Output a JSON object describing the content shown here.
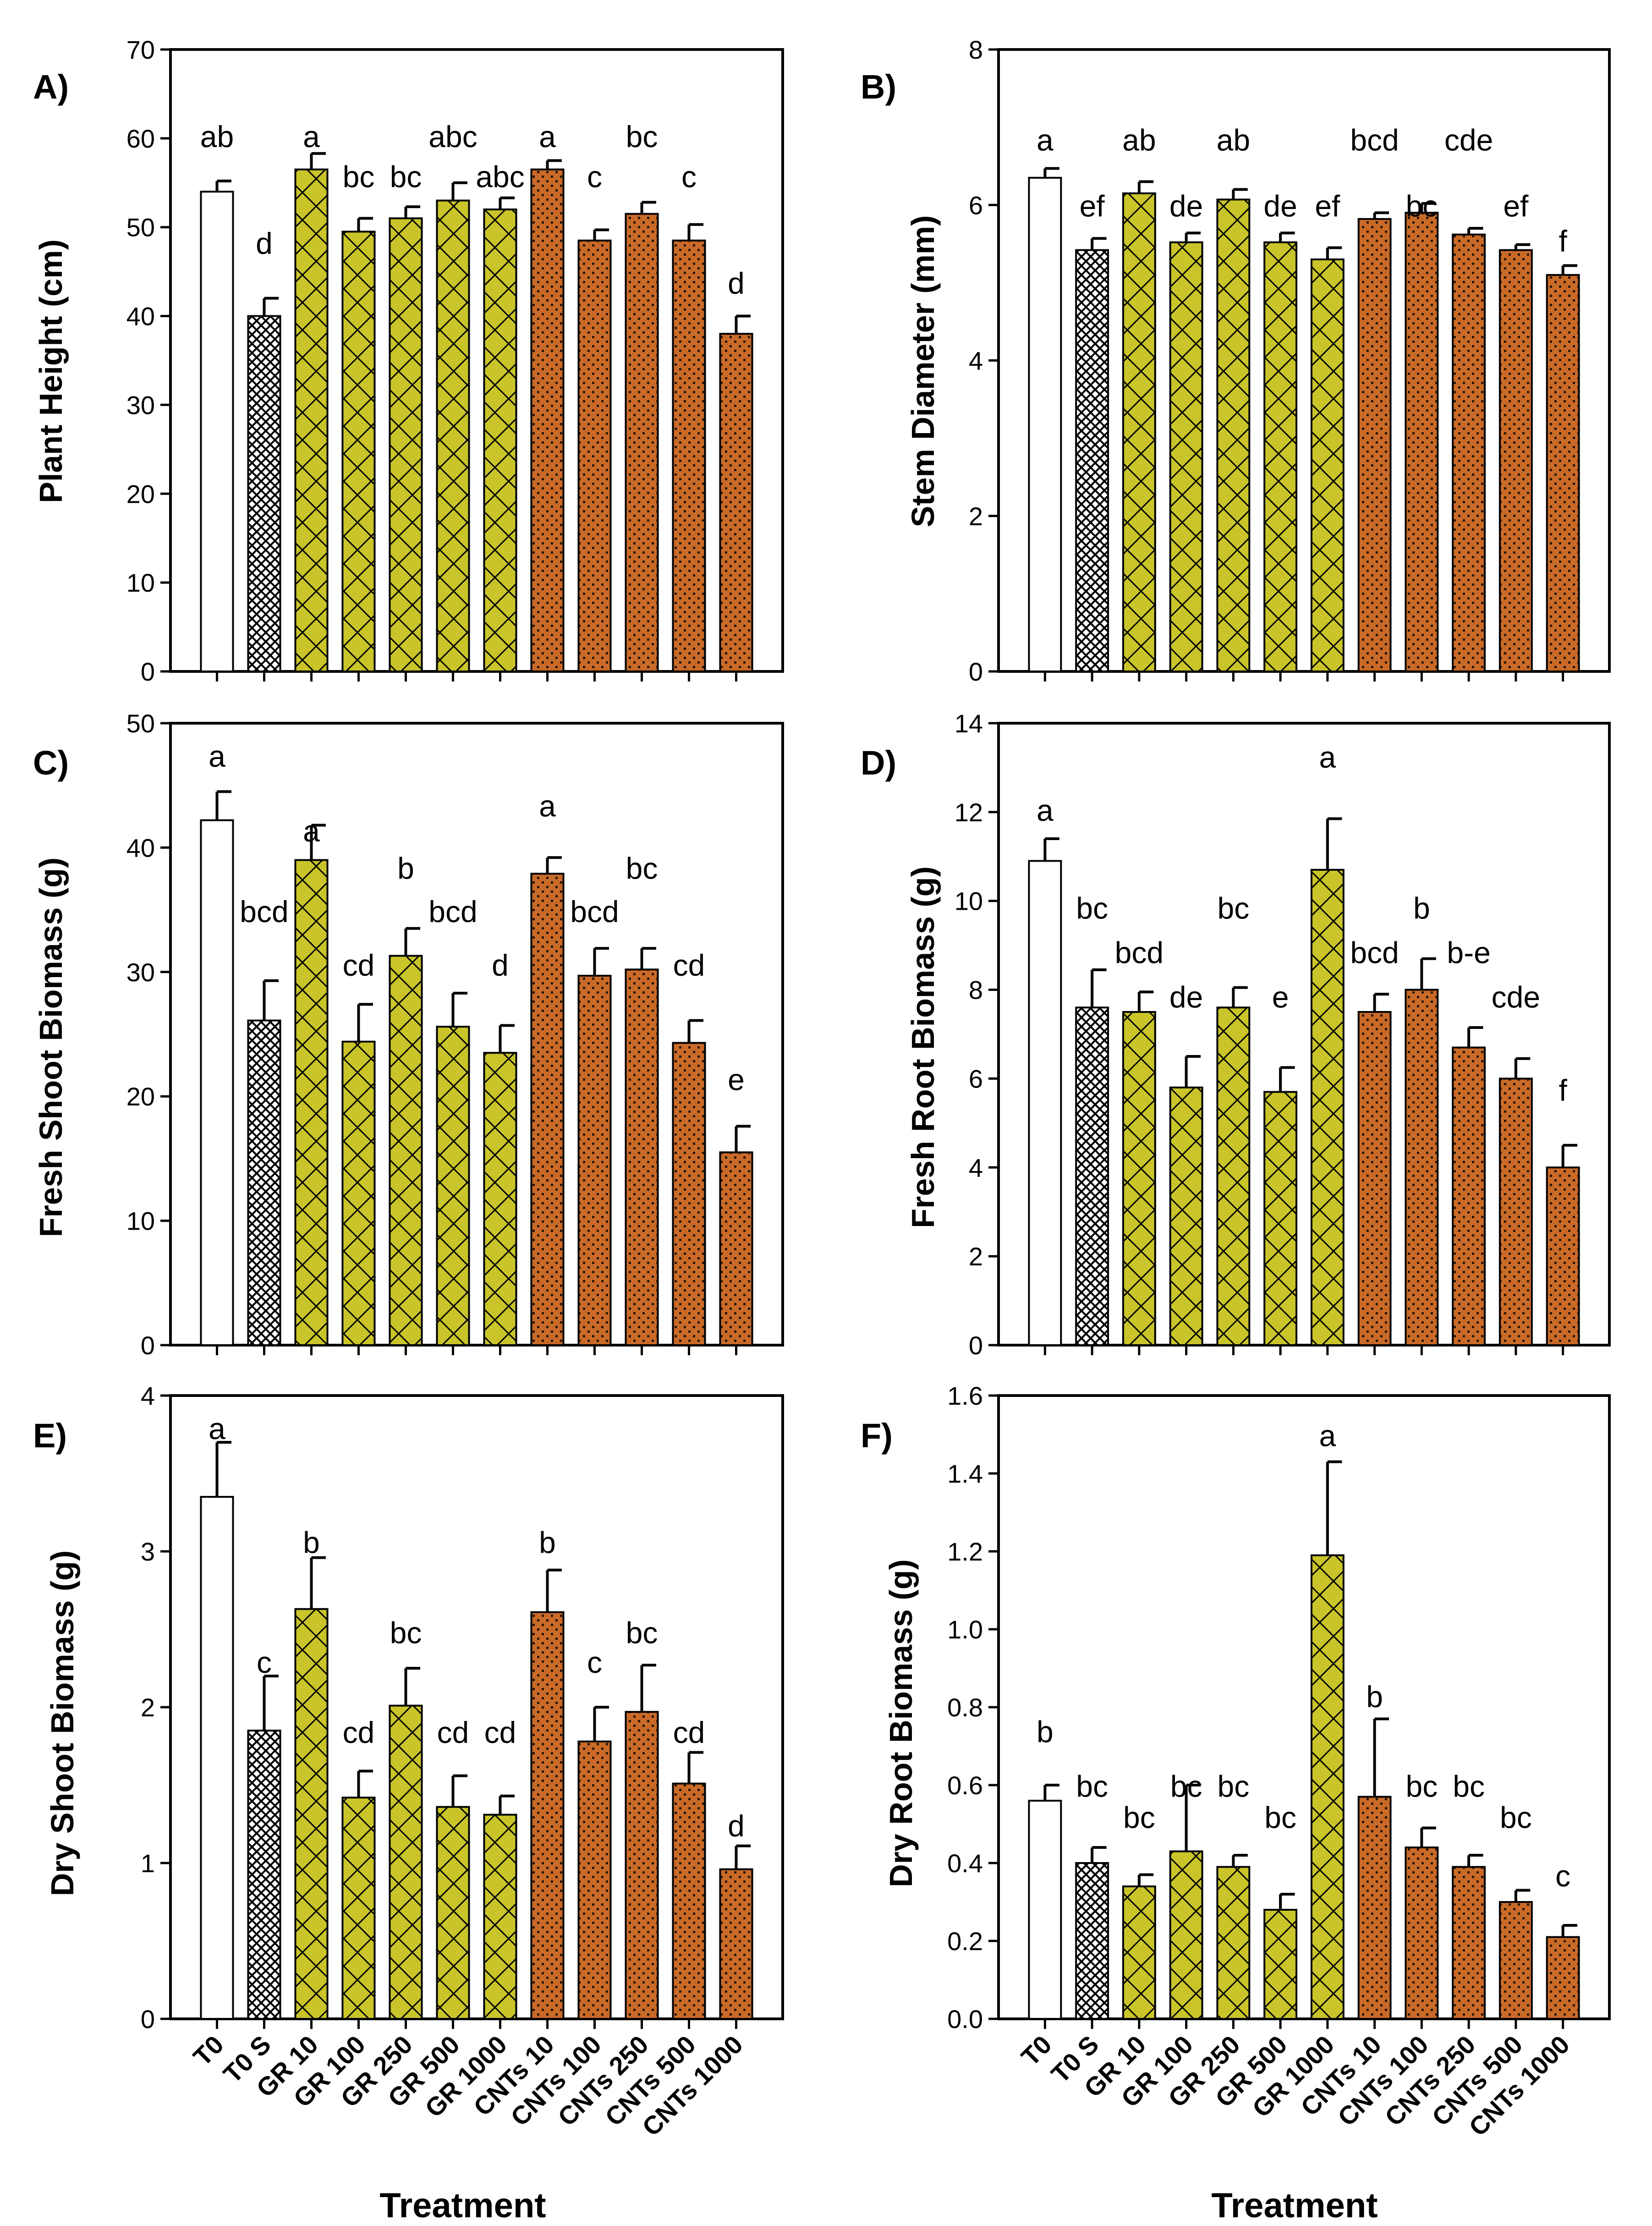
{
  "colors": {
    "control": "#ffffff",
    "salt": "#ffffff",
    "graphene": "#c9c42a",
    "cnts": "#c96a28",
    "cnts_dot": "#2a1608",
    "outline": "#000000"
  },
  "x_axis_title": "Treatment",
  "chart_data": [
    {
      "panel": "A)",
      "type": "bar",
      "ylabel": "Plant Height (cm)",
      "ylim": [
        0,
        70
      ],
      "ticks": [
        0,
        10,
        20,
        30,
        40,
        50,
        60,
        70
      ],
      "tick_labels": [
        "0",
        "10",
        "20",
        "30",
        "40",
        "50",
        "60",
        "70"
      ],
      "categories": [
        "T0",
        "T0 S",
        "GR 10",
        "GR 100",
        "GR 250",
        "GR 500",
        "GR 1000",
        "CNTs 10",
        "CNTs 100",
        "CNTs 250",
        "CNTs 500",
        "CNTs 1000"
      ],
      "values": [
        54,
        40,
        56.5,
        49.5,
        51,
        53,
        52,
        56.5,
        48.5,
        51.5,
        48.5,
        38
      ],
      "errors": [
        1.2,
        2,
        1.8,
        1.5,
        1.3,
        2,
        1.3,
        1,
        1.2,
        1.3,
        1.8,
        2
      ],
      "letters": [
        "ab",
        "d",
        "a",
        "bc",
        "bc",
        "abc",
        "abc",
        "a",
        "c",
        "bc",
        "c",
        "d"
      ],
      "letter_values": [
        59,
        47,
        59,
        54.5,
        54.5,
        59,
        54.5,
        59,
        54.5,
        59,
        54.5,
        42.5
      ],
      "show_xlabels": false
    },
    {
      "panel": "B)",
      "type": "bar",
      "ylabel": "Stem Diameter (mm)",
      "ylim": [
        0,
        8
      ],
      "ticks": [
        0,
        2,
        4,
        6,
        8
      ],
      "tick_labels": [
        "0",
        "2",
        "4",
        "6",
        "8"
      ],
      "categories": [
        "T0",
        "T0 S",
        "GR 10",
        "GR 100",
        "GR 250",
        "GR 500",
        "GR 1000",
        "CNTs 10",
        "CNTs 100",
        "CNTs 250",
        "CNTs 500",
        "CNTs 1000"
      ],
      "values": [
        6.35,
        5.42,
        6.15,
        5.52,
        6.07,
        5.52,
        5.3,
        5.82,
        5.9,
        5.62,
        5.42,
        5.1
      ],
      "errors": [
        0.12,
        0.15,
        0.15,
        0.12,
        0.13,
        0.12,
        0.15,
        0.08,
        0.12,
        0.08,
        0.07,
        0.12
      ],
      "letters": [
        "a",
        "ef",
        "ab",
        "de",
        "ab",
        "de",
        "ef",
        "bcd",
        "bc",
        "cde",
        "ef",
        "f"
      ],
      "letter_values": [
        6.7,
        5.85,
        6.7,
        5.85,
        6.7,
        5.85,
        5.85,
        6.7,
        5.85,
        6.7,
        5.85,
        5.4
      ],
      "show_xlabels": false
    },
    {
      "panel": "C)",
      "type": "bar",
      "ylabel": "Fresh Shoot Biomass (g)",
      "ylim": [
        0,
        50
      ],
      "ticks": [
        0,
        10,
        20,
        30,
        40,
        50
      ],
      "tick_labels": [
        "0",
        "10",
        "20",
        "30",
        "40",
        "50"
      ],
      "categories": [
        "T0",
        "T0 S",
        "GR 10",
        "GR 100",
        "GR 250",
        "GR 500",
        "GR 1000",
        "CNTs 10",
        "CNTs 100",
        "CNTs 250",
        "CNTs 500",
        "CNTs 1000"
      ],
      "values": [
        42.2,
        26.1,
        39,
        24.4,
        31.3,
        25.6,
        23.5,
        37.9,
        29.7,
        30.2,
        24.3,
        15.5
      ],
      "errors": [
        2.3,
        3.2,
        2.8,
        3,
        2.2,
        2.7,
        2.2,
        1.3,
        2.2,
        1.7,
        1.8,
        2.1
      ],
      "letters": [
        "a",
        "bcd",
        "a",
        "cd",
        "b",
        "bcd",
        "d",
        "a",
        "bcd",
        "bc",
        "cd",
        "e"
      ],
      "letter_values": [
        46.5,
        34,
        40.5,
        29.7,
        37.5,
        34,
        29.7,
        42.5,
        34,
        37.5,
        29.7,
        20.5
      ],
      "show_xlabels": false
    },
    {
      "panel": "D)",
      "type": "bar",
      "ylabel": "Fresh Root Biomass (g)",
      "ylim": [
        0,
        14
      ],
      "ticks": [
        0,
        2,
        4,
        6,
        8,
        10,
        12,
        14
      ],
      "tick_labels": [
        "0",
        "2",
        "4",
        "6",
        "8",
        "10",
        "12",
        "14"
      ],
      "categories": [
        "T0",
        "T0 S",
        "GR 10",
        "GR 100",
        "GR 250",
        "GR 500",
        "GR 1000",
        "CNTs 10",
        "CNTs 100",
        "CNTs 250",
        "CNTs 500",
        "CNTs 1000"
      ],
      "values": [
        10.9,
        7.6,
        7.5,
        5.8,
        7.6,
        5.7,
        10.7,
        7.5,
        8,
        6.7,
        6,
        4
      ],
      "errors": [
        0.5,
        0.85,
        0.45,
        0.7,
        0.45,
        0.55,
        1.15,
        0.4,
        0.7,
        0.45,
        0.45,
        0.5
      ],
      "letters": [
        "a",
        "bc",
        "bcd",
        "de",
        "bc",
        "e",
        "a",
        "bcd",
        "b",
        "b-e",
        "cde",
        "f"
      ],
      "letter_values": [
        11.8,
        9.6,
        8.6,
        7.6,
        9.6,
        7.6,
        13,
        8.6,
        9.6,
        8.6,
        7.6,
        5.5
      ],
      "show_xlabels": false
    },
    {
      "panel": "E)",
      "type": "bar",
      "ylabel": "Dry Shoot Biomass (g)",
      "ylim": [
        0,
        4
      ],
      "ticks": [
        0,
        1,
        2,
        3,
        4
      ],
      "tick_labels": [
        "0",
        "1",
        "2",
        "3",
        "4"
      ],
      "categories": [
        "T0",
        "T0 S",
        "GR 10",
        "GR 100",
        "GR 250",
        "GR 500",
        "GR 1000",
        "CNTs 10",
        "CNTs 100",
        "CNTs 250",
        "CNTs 500",
        "CNTs 1000"
      ],
      "values": [
        3.35,
        1.85,
        2.63,
        1.42,
        2.01,
        1.36,
        1.31,
        2.61,
        1.78,
        1.97,
        1.51,
        0.96
      ],
      "errors": [
        0.35,
        0.35,
        0.33,
        0.17,
        0.24,
        0.2,
        0.12,
        0.27,
        0.22,
        0.3,
        0.2,
        0.15
      ],
      "letters": [
        "a",
        "c",
        "b",
        "cd",
        "bc",
        "cd",
        "cd",
        "b",
        "c",
        "bc",
        "cd",
        "d"
      ],
      "letter_values": [
        3.72,
        2.22,
        2.99,
        1.77,
        2.41,
        1.77,
        1.77,
        2.99,
        2.22,
        2.41,
        1.77,
        1.17
      ],
      "show_xlabels": true
    },
    {
      "panel": "F)",
      "type": "bar",
      "ylabel": "Dry Root Biomass (g)",
      "ylim": [
        0,
        1.6
      ],
      "ticks": [
        0,
        0.2,
        0.4,
        0.6,
        0.8,
        1.0,
        1.2,
        1.4,
        1.6
      ],
      "tick_labels": [
        "0.0",
        "0.2",
        "0.4",
        "0.6",
        "0.8",
        "1.0",
        "1.2",
        "1.4",
        "1.6"
      ],
      "categories": [
        "T0",
        "T0 S",
        "GR 10",
        "GR 100",
        "GR 250",
        "GR 500",
        "GR 1000",
        "CNTs 10",
        "CNTs 100",
        "CNTs 250",
        "CNTs 500",
        "CNTs 1000"
      ],
      "values": [
        0.56,
        0.4,
        0.34,
        0.43,
        0.39,
        0.28,
        1.19,
        0.57,
        0.44,
        0.39,
        0.3,
        0.21
      ],
      "errors": [
        0.04,
        0.04,
        0.03,
        0.17,
        0.03,
        0.04,
        0.24,
        0.2,
        0.05,
        0.03,
        0.03,
        0.03
      ],
      "letters": [
        "b",
        "bc",
        "bc",
        "bc",
        "bc",
        "bc",
        "a",
        "b",
        "bc",
        "bc",
        "bc",
        "c"
      ],
      "letter_values": [
        0.71,
        0.57,
        0.49,
        0.57,
        0.57,
        0.49,
        1.47,
        0.8,
        0.57,
        0.57,
        0.49,
        0.34
      ],
      "show_xlabels": true
    }
  ]
}
